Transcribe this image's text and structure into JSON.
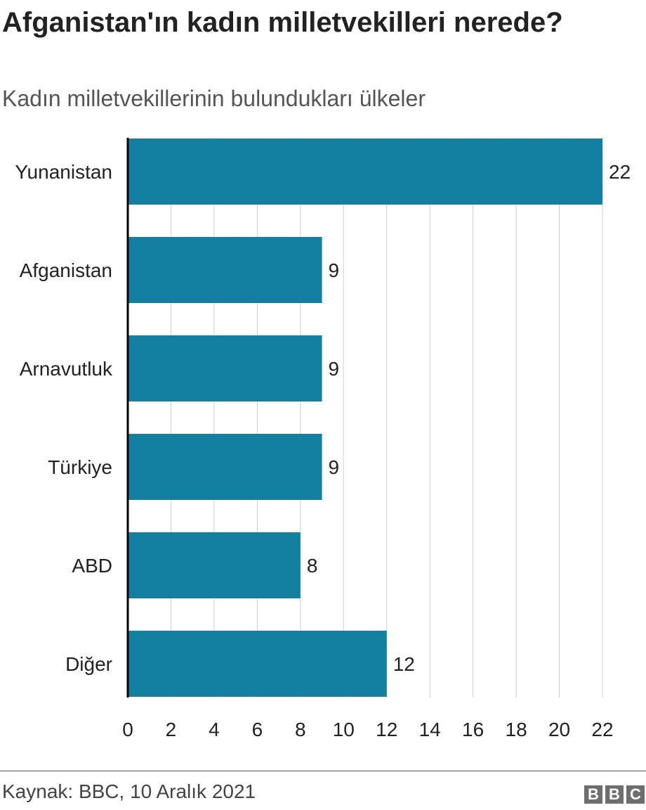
{
  "title": "Afganistan'ın kadın milletvekilleri nerede?",
  "subtitle": "Kadın milletvekillerinin bulundukları ülkeler",
  "source": "Kaynak: BBC, 10 Aralık 2021",
  "logo": {
    "letters": [
      "B",
      "B",
      "C"
    ]
  },
  "chart_data": {
    "type": "bar",
    "orientation": "horizontal",
    "categories": [
      "Yunanistan",
      "Afganistan",
      "Arnavutluk",
      "Türkiye",
      "ABD",
      "Diğer"
    ],
    "values": [
      22,
      9,
      9,
      9,
      8,
      12
    ],
    "xlim": [
      0,
      22
    ],
    "xticks": [
      0,
      2,
      4,
      6,
      8,
      10,
      12,
      14,
      16,
      18,
      20,
      22
    ],
    "grid": true,
    "legend": "none",
    "colors": {
      "bar": "#1380a1",
      "grid": "#cccccc",
      "axis": "#000000"
    }
  }
}
